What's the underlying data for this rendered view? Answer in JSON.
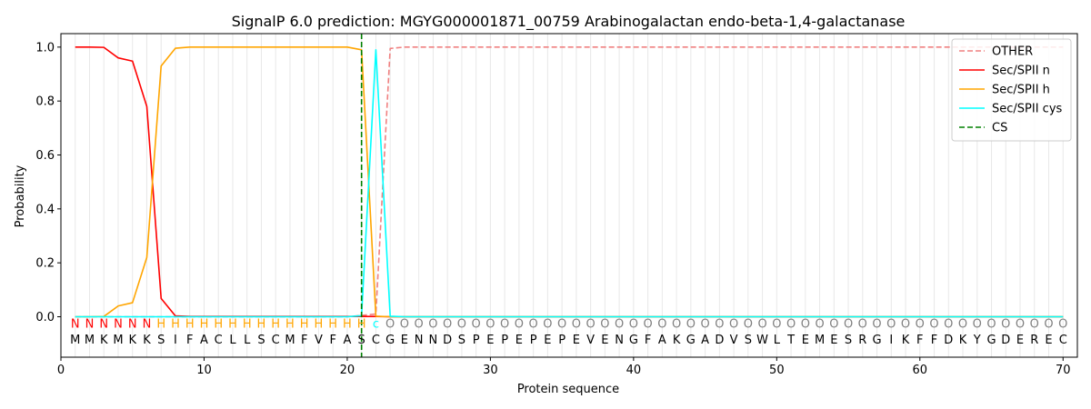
{
  "chart_data": {
    "type": "line",
    "title": "SignalP 6.0 prediction: MGYG000001871_00759 Arabinogalactan endo-beta-1,4-galactanase",
    "xlabel": "Protein sequence",
    "ylabel": "Probability",
    "xlim": [
      0,
      71
    ],
    "ylim": [
      -0.15,
      1.05
    ],
    "xticks": [
      0,
      10,
      20,
      30,
      40,
      50,
      60,
      70
    ],
    "yticks": [
      0.0,
      0.2,
      0.4,
      0.6,
      0.8,
      1.0
    ],
    "ytick_labels": [
      "0.0",
      "0.2",
      "0.4",
      "0.6",
      "0.8",
      "1.0"
    ],
    "legend_position": "top-right",
    "sequence": [
      "M",
      "M",
      "K",
      "M",
      "K",
      "K",
      "S",
      "I",
      "F",
      "A",
      "C",
      "L",
      "L",
      "S",
      "C",
      "M",
      "F",
      "V",
      "F",
      "A",
      "S",
      "C",
      "G",
      "E",
      "N",
      "N",
      "D",
      "S",
      "P",
      "E",
      "P",
      "E",
      "P",
      "E",
      "P",
      "E",
      "V",
      "E",
      "N",
      "G",
      "F",
      "A",
      "K",
      "G",
      "A",
      "D",
      "V",
      "S",
      "W",
      "L",
      "T",
      "E",
      "M",
      "E",
      "S",
      "R",
      "G",
      "I",
      "K",
      "F",
      "F",
      "D",
      "K",
      "Y",
      "G",
      "D",
      "E",
      "R",
      "E",
      "C"
    ],
    "region_labels": [
      "N",
      "N",
      "N",
      "N",
      "N",
      "N",
      "H",
      "H",
      "H",
      "H",
      "H",
      "H",
      "H",
      "H",
      "H",
      "H",
      "H",
      "H",
      "H",
      "H",
      "H",
      "c",
      "O",
      "O",
      "O",
      "O",
      "O",
      "O",
      "O",
      "O",
      "O",
      "O",
      "O",
      "O",
      "O",
      "O",
      "O",
      "O",
      "O",
      "O",
      "O",
      "O",
      "O",
      "O",
      "O",
      "O",
      "O",
      "O",
      "O",
      "O",
      "O",
      "O",
      "O",
      "O",
      "O",
      "O",
      "O",
      "O",
      "O",
      "O",
      "O",
      "O",
      "O",
      "O",
      "O",
      "O",
      "O",
      "O",
      "O",
      "O"
    ],
    "region_colors": {
      "N": "#ff0000",
      "H": "#ffa500",
      "c": "#00ffff",
      "O": "#808080"
    },
    "cleavage_site": 21,
    "cs_label": "CS",
    "cs_color": "#008000",
    "series": [
      {
        "name": "OTHER",
        "color": "#f08080",
        "dash": true,
        "values": [
          0,
          0,
          0,
          0,
          0,
          0,
          0,
          0,
          0,
          0,
          0,
          0,
          0,
          0,
          0,
          0,
          0,
          0,
          0,
          0,
          0.005,
          0.01,
          0.995,
          1.0,
          1.0,
          1.0,
          1.0,
          1.0,
          1.0,
          1.0,
          1.0,
          1.0,
          1.0,
          1.0,
          1.0,
          1.0,
          1.0,
          1.0,
          1.0,
          1.0,
          1.0,
          1.0,
          1.0,
          1.0,
          1.0,
          1.0,
          1.0,
          1.0,
          1.0,
          1.0,
          1.0,
          1.0,
          1.0,
          1.0,
          1.0,
          1.0,
          1.0,
          1.0,
          1.0,
          1.0,
          1.0,
          1.0,
          1.0,
          1.0,
          1.0,
          1.0,
          1.0,
          1.0,
          1.0,
          1.0
        ]
      },
      {
        "name": "Sec/SPII n",
        "color": "#ff0000",
        "dash": false,
        "values": [
          1.0,
          1.0,
          0.999,
          0.96,
          0.948,
          0.78,
          0.068,
          0.003,
          0.001,
          0.001,
          0.001,
          0.001,
          0.001,
          0.001,
          0.001,
          0.001,
          0.001,
          0.001,
          0.001,
          0.001,
          0.001,
          0.001,
          0,
          0,
          0,
          0,
          0,
          0,
          0,
          0,
          0,
          0,
          0,
          0,
          0,
          0,
          0,
          0,
          0,
          0,
          0,
          0,
          0,
          0,
          0,
          0,
          0,
          0,
          0,
          0,
          0,
          0,
          0,
          0,
          0,
          0,
          0,
          0,
          0,
          0,
          0,
          0,
          0,
          0,
          0,
          0,
          0,
          0,
          0,
          0
        ]
      },
      {
        "name": "Sec/SPII h",
        "color": "#ffa500",
        "dash": false,
        "values": [
          0,
          0,
          0.001,
          0.04,
          0.052,
          0.22,
          0.93,
          0.996,
          1.0,
          1.0,
          1.0,
          1.0,
          1.0,
          1.0,
          1.0,
          1.0,
          1.0,
          1.0,
          1.0,
          1.0,
          0.99,
          0.002,
          0,
          0,
          0,
          0,
          0,
          0,
          0,
          0,
          0,
          0,
          0,
          0,
          0,
          0,
          0,
          0,
          0,
          0,
          0,
          0,
          0,
          0,
          0,
          0,
          0,
          0,
          0,
          0,
          0,
          0,
          0,
          0,
          0,
          0,
          0,
          0,
          0,
          0,
          0,
          0,
          0,
          0,
          0,
          0,
          0,
          0,
          0,
          0
        ]
      },
      {
        "name": "Sec/SPII cys",
        "color": "#00ffff",
        "dash": false,
        "values": [
          0,
          0,
          0,
          0,
          0,
          0,
          0,
          0,
          0,
          0,
          0,
          0,
          0,
          0,
          0,
          0,
          0,
          0,
          0,
          0,
          0.004,
          0.99,
          0.002,
          0,
          0,
          0,
          0,
          0,
          0,
          0,
          0,
          0,
          0,
          0,
          0,
          0,
          0,
          0,
          0,
          0,
          0,
          0,
          0,
          0,
          0,
          0,
          0,
          0,
          0,
          0,
          0,
          0,
          0,
          0,
          0,
          0,
          0,
          0,
          0,
          0,
          0,
          0,
          0,
          0,
          0,
          0,
          0,
          0,
          0,
          0
        ]
      }
    ]
  }
}
